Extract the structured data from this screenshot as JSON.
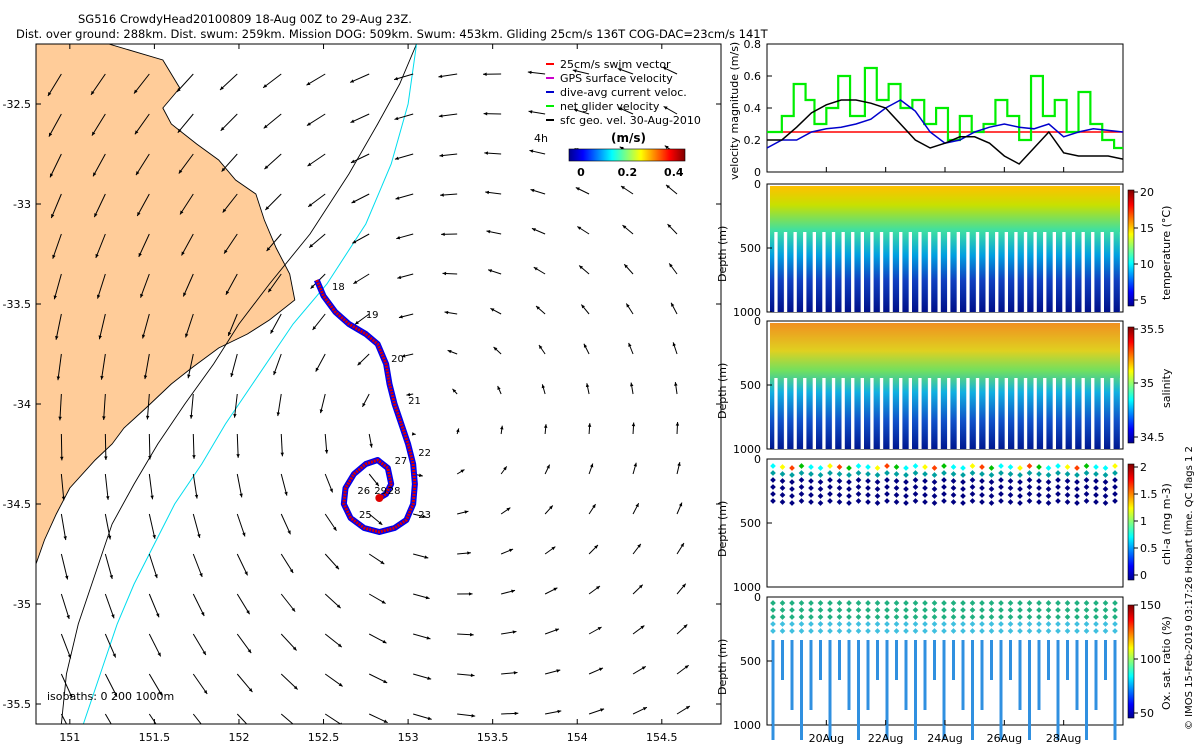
{
  "colors": {
    "land": "#FFCC99",
    "coast": "#000000",
    "iso200": "#00DDEE",
    "iso1000": "#000000",
    "track_red": "#DD0000",
    "track_blue": "#0000EE",
    "swim": "#FF0000",
    "gps": "#CC00CC",
    "dac": "#0000CC",
    "net": "#00EE00",
    "geo": "#000000"
  },
  "header": {
    "line1": "SG516 CrowdyHead20100809 18-Aug 00Z to 29-Aug 23Z.",
    "line2": "Dist. over ground: 288km. Dist. swum: 259km. Mission DOG: 509km. Swum: 453km. Gliding 25cm/s 136T COG-DAC=23cm/s 141T"
  },
  "map": {
    "legend": [
      {
        "label": "25cm/s swim vector",
        "color": "#FF0000"
      },
      {
        "label": "GPS surface velocity",
        "color": "#CC00CC"
      },
      {
        "label": "dive-avg current veloc.",
        "color": "#0000CC"
      },
      {
        "label": "net glider velocity",
        "color": "#00EE00"
      },
      {
        "label": "sfc geo. vel. 30-Aug-2010",
        "color": "#000000"
      }
    ],
    "legend_extra": "4h",
    "colorbar_title": "(m/s)",
    "colorbar_ticks": [
      "0",
      "0.2",
      "0.4"
    ],
    "isobaths_label": "isobaths: 0   200  1000m",
    "lon_ticks": [
      "151",
      "151.5",
      "152",
      "152.5",
      "153",
      "153.5",
      "154",
      "154.5"
    ],
    "lat_ticks": [
      "-32.5",
      "-33",
      "-33.5",
      "-34",
      "-34.5",
      "-35",
      "-35.5"
    ],
    "day_labels": [
      {
        "text": "18",
        "lon": 152.55,
        "lat": -33.43
      },
      {
        "text": "19",
        "lon": 152.75,
        "lat": -33.57
      },
      {
        "text": "20",
        "lon": 152.9,
        "lat": -33.79
      },
      {
        "text": "21",
        "lon": 153.0,
        "lat": -34.0
      },
      {
        "text": "22",
        "lon": 153.06,
        "lat": -34.26
      },
      {
        "text": "23",
        "lon": 153.06,
        "lat": -34.57
      },
      {
        "text": "25",
        "lon": 152.71,
        "lat": -34.57
      },
      {
        "text": "26",
        "lon": 152.7,
        "lat": -34.45
      },
      {
        "text": "27",
        "lon": 152.92,
        "lat": -34.3
      },
      {
        "text": "28",
        "lon": 152.88,
        "lat": -34.45
      },
      {
        "text": "29",
        "lon": 152.8,
        "lat": -34.45
      }
    ]
  },
  "velocity_panel": {
    "ylabel": "velocity magnitude (m/s)",
    "yticks": [
      "0",
      "0.2",
      "0.4",
      "0.6",
      "0.8"
    ]
  },
  "section_panels": [
    {
      "id": "temperature",
      "ylabel": "Depth (m)",
      "yticks": [
        "0",
        "500",
        "1000"
      ],
      "cbar_label": "temperature (°C)",
      "cbar_ticks": [
        "5",
        "10",
        "15",
        "20"
      ]
    },
    {
      "id": "salinity",
      "ylabel": "Depth (m)",
      "yticks": [
        "0",
        "500",
        "1000"
      ],
      "cbar_label": "salinity",
      "cbar_ticks": [
        "34.5",
        "35",
        "35.5"
      ]
    },
    {
      "id": "chla",
      "ylabel": "Depth (m)",
      "yticks": [
        "0",
        "500",
        "1000"
      ],
      "cbar_label": "chl-a (mg m-3)",
      "cbar_ticks": [
        "0",
        "0.5",
        "1",
        "1.5",
        "2"
      ]
    },
    {
      "id": "oxygen",
      "ylabel": "Depth (m)",
      "yticks": [
        "0",
        "500",
        "1000"
      ],
      "cbar_label": "Ox. sat. ratio (%)",
      "cbar_ticks": [
        "50",
        "100",
        "150"
      ]
    }
  ],
  "time_ticks": [
    "20Aug",
    "22Aug",
    "24Aug",
    "26Aug",
    "28Aug"
  ],
  "footer": "© IMOS 15-Feb-2019 03:17:26 Hobart time. QC flags 1  2",
  "chart_data": [
    {
      "type": "scatter",
      "title": "SG516 CrowdyHead20100809 18-Aug 00Z to 29-Aug 23Z.",
      "xlim": [
        150.8,
        154.85
      ],
      "ylim": [
        -35.6,
        -32.2
      ],
      "x_ticks": [
        151,
        151.5,
        152,
        152.5,
        153,
        153.5,
        154,
        154.5
      ],
      "y_ticks": [
        -32.5,
        -33,
        -33.5,
        -34,
        -34.5,
        -35,
        -35.5
      ],
      "glider_track": {
        "lon": [
          152.46,
          152.5,
          152.57,
          152.65,
          152.75,
          152.82,
          152.87,
          152.89,
          152.92,
          152.96,
          153.0,
          153.03,
          153.04,
          153.03,
          152.99,
          152.92,
          152.83,
          152.74,
          152.66,
          152.62,
          152.63,
          152.68,
          152.75,
          152.82,
          152.88,
          152.9,
          152.87,
          152.83
        ],
        "lat": [
          -33.38,
          -33.46,
          -33.54,
          -33.6,
          -33.65,
          -33.7,
          -33.8,
          -33.9,
          -34.0,
          -34.1,
          -34.2,
          -34.3,
          -34.4,
          -34.5,
          -34.58,
          -34.62,
          -34.64,
          -34.62,
          -34.57,
          -34.5,
          -34.42,
          -34.35,
          -34.3,
          -34.28,
          -34.32,
          -34.4,
          -34.45,
          -34.47
        ]
      },
      "coastline": {
        "lon": [
          151.23,
          151.55,
          151.65,
          151.55,
          151.6,
          151.75,
          151.88,
          151.98,
          152.1,
          152.15,
          152.22,
          152.3,
          152.33,
          152.18,
          152.05,
          151.88,
          151.72,
          151.6,
          151.45,
          151.32,
          151.25,
          151.15,
          151.0,
          150.92,
          150.85,
          150.8
        ],
        "lat": [
          -32.2,
          -32.28,
          -32.42,
          -32.52,
          -32.6,
          -32.7,
          -32.78,
          -32.88,
          -32.95,
          -33.08,
          -33.22,
          -33.35,
          -33.48,
          -33.58,
          -33.65,
          -33.72,
          -33.82,
          -33.9,
          -34.02,
          -34.12,
          -34.2,
          -34.28,
          -34.42,
          -34.55,
          -34.68,
          -34.8
        ]
      },
      "isobath_200": {
        "lon": [
          153.05,
          153.0,
          152.9,
          152.75,
          152.52,
          152.32,
          152.08,
          151.92,
          151.78,
          151.62,
          151.5,
          151.38,
          151.28,
          151.2,
          151.12,
          151.08
        ],
        "lat": [
          -32.2,
          -32.5,
          -32.8,
          -33.1,
          -33.4,
          -33.6,
          -33.9,
          -34.1,
          -34.3,
          -34.5,
          -34.7,
          -34.9,
          -35.1,
          -35.3,
          -35.5,
          -35.6
        ]
      },
      "isobath_1000": {
        "lon": [
          153.05,
          152.95,
          152.82,
          152.65,
          152.42,
          152.18,
          152.0,
          151.85,
          151.68,
          151.52,
          151.38,
          151.25,
          151.15,
          151.05,
          150.98,
          150.95
        ],
        "lat": [
          -32.2,
          -32.4,
          -32.6,
          -32.85,
          -33.15,
          -33.4,
          -33.6,
          -33.8,
          -34.0,
          -34.2,
          -34.4,
          -34.6,
          -34.85,
          -35.1,
          -35.35,
          -35.6
        ]
      }
    },
    {
      "type": "line",
      "ylabel": "velocity magnitude (m/s)",
      "xlim": [
        18.0,
        30.0
      ],
      "ylim": [
        0,
        0.8
      ],
      "x_tick_values": [
        20,
        22,
        24,
        26,
        28
      ],
      "x_tick_labels": [
        "20Aug",
        "22Aug",
        "24Aug",
        "26Aug",
        "28Aug"
      ],
      "series": [
        {
          "name": "25cm/s swim vector",
          "x": [
            18.0,
            30.0
          ],
          "values": [
            0.25,
            0.25
          ]
        },
        {
          "name": "net glider velocity",
          "x": [
            18.0,
            18.5,
            18.9,
            19.3,
            19.6,
            20.0,
            20.4,
            20.8,
            21.3,
            21.7,
            22.1,
            22.5,
            22.9,
            23.3,
            23.7,
            24.1,
            24.5,
            24.9,
            25.3,
            25.7,
            26.1,
            26.5,
            26.9,
            27.3,
            27.7,
            28.1,
            28.5,
            28.9,
            29.3,
            29.7,
            30.0
          ],
          "values": [
            0.25,
            0.35,
            0.55,
            0.45,
            0.3,
            0.4,
            0.6,
            0.35,
            0.65,
            0.45,
            0.55,
            0.4,
            0.45,
            0.3,
            0.4,
            0.2,
            0.35,
            0.25,
            0.3,
            0.45,
            0.35,
            0.2,
            0.6,
            0.35,
            0.45,
            0.25,
            0.5,
            0.3,
            0.2,
            0.15,
            0.15
          ]
        },
        {
          "name": "dive-avg current veloc.",
          "x": [
            18.0,
            18.5,
            19.0,
            19.5,
            20.0,
            20.5,
            21.0,
            21.5,
            22.0,
            22.5,
            23.0,
            23.5,
            24.0,
            24.5,
            25.0,
            25.5,
            26.0,
            26.5,
            27.0,
            27.5,
            28.0,
            28.5,
            29.0,
            29.5,
            30.0
          ],
          "values": [
            0.15,
            0.2,
            0.2,
            0.25,
            0.27,
            0.28,
            0.3,
            0.33,
            0.4,
            0.45,
            0.38,
            0.25,
            0.18,
            0.2,
            0.25,
            0.28,
            0.3,
            0.28,
            0.27,
            0.3,
            0.22,
            0.25,
            0.27,
            0.26,
            0.25
          ]
        },
        {
          "name": "sfc geo. vel. 30-Aug-2010",
          "x": [
            18.0,
            18.5,
            19.0,
            19.5,
            20.0,
            20.5,
            21.0,
            21.5,
            22.0,
            22.5,
            23.0,
            23.5,
            24.0,
            24.5,
            25.0,
            25.5,
            26.0,
            26.5,
            27.0,
            27.5,
            28.0,
            28.5,
            29.0,
            29.5,
            30.0
          ],
          "values": [
            0.2,
            0.2,
            0.28,
            0.37,
            0.42,
            0.45,
            0.45,
            0.43,
            0.4,
            0.3,
            0.2,
            0.15,
            0.18,
            0.22,
            0.22,
            0.18,
            0.1,
            0.05,
            0.15,
            0.25,
            0.12,
            0.1,
            0.1,
            0.1,
            0.08
          ]
        }
      ]
    }
  ]
}
